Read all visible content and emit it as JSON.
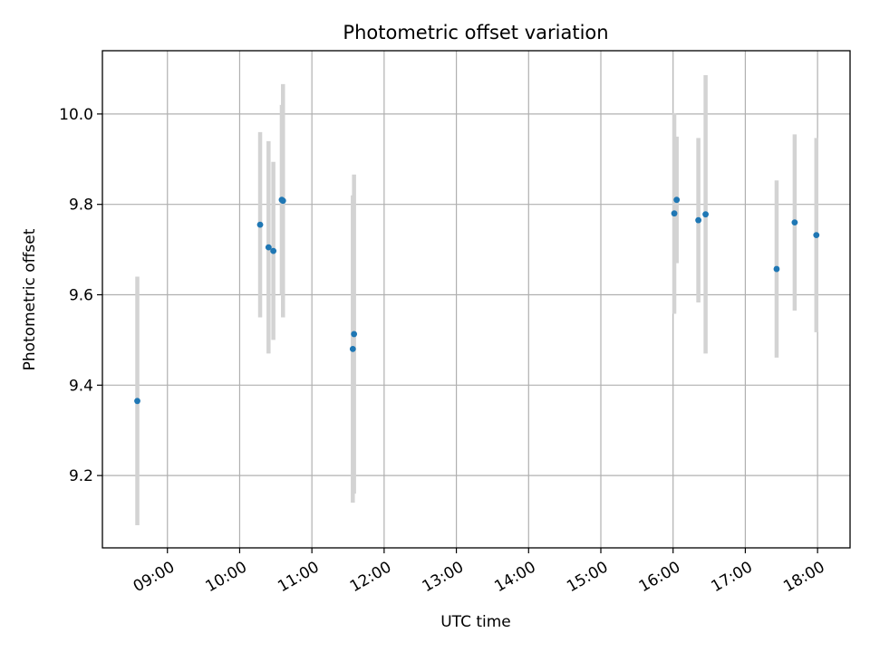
{
  "chart_data": {
    "type": "scatter",
    "title": "Photometric offset variation",
    "xlabel": "UTC time",
    "ylabel": "Photometric offset",
    "x_ticks": [
      "09:00",
      "10:00",
      "11:00",
      "12:00",
      "13:00",
      "14:00",
      "15:00",
      "16:00",
      "17:00",
      "18:00"
    ],
    "y_ticks": [
      "9.2",
      "9.4",
      "9.6",
      "9.8",
      "10.0"
    ],
    "xlim": [
      "08:06",
      "18:27"
    ],
    "ylim": [
      9.04,
      10.14
    ],
    "grid": true,
    "legend": "none",
    "colors": {
      "marker": "#1f77b4",
      "errorbar": "#d3d3d3"
    },
    "points": [
      {
        "x": "08:35",
        "y": 9.365,
        "yerr": 0.275
      },
      {
        "x": "10:17",
        "y": 9.755,
        "yerr": 0.205
      },
      {
        "x": "10:24",
        "y": 9.705,
        "yerr": 0.235
      },
      {
        "x": "10:28",
        "y": 9.697,
        "yerr": 0.197
      },
      {
        "x": "10:35",
        "y": 9.81,
        "yerr": 0.21
      },
      {
        "x": "10:36",
        "y": 9.808,
        "yerr": 0.258
      },
      {
        "x": "11:34",
        "y": 9.48,
        "yerr": 0.34
      },
      {
        "x": "11:35",
        "y": 9.513,
        "yerr": 0.353
      },
      {
        "x": "16:01",
        "y": 9.78,
        "yerr": 0.222
      },
      {
        "x": "16:03",
        "y": 9.81,
        "yerr": 0.14
      },
      {
        "x": "16:21",
        "y": 9.765,
        "yerr": 0.182
      },
      {
        "x": "16:27",
        "y": 9.778,
        "yerr": 0.308
      },
      {
        "x": "17:26",
        "y": 9.657,
        "yerr": 0.196
      },
      {
        "x": "17:41",
        "y": 9.76,
        "yerr": 0.195
      },
      {
        "x": "17:59",
        "y": 9.732,
        "yerr": 0.215
      }
    ]
  }
}
